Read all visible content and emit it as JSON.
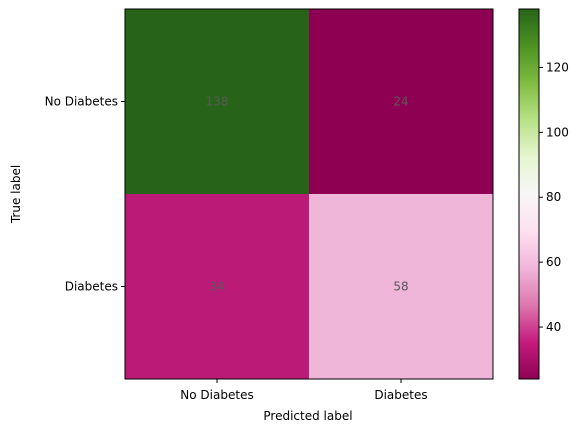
{
  "chart_data": {
    "type": "heatmap",
    "row_labels": [
      "No Diabetes",
      "Diabetes"
    ],
    "col_labels": [
      "No Diabetes",
      "Diabetes"
    ],
    "values": [
      [
        138,
        24
      ],
      [
        34,
        58
      ]
    ],
    "xlabel": "Predicted label",
    "ylabel": "True label",
    "colormap": "PiYG",
    "value_range": [
      24,
      138
    ],
    "colorbar_ticks": [
      40,
      60,
      80,
      100,
      120
    ],
    "colors": {
      "138": "#276419",
      "24": "#8e0152",
      "34": "#bc1a77",
      "58": "#f0b6d9",
      "cell_text": "#595959"
    },
    "grid": false
  }
}
